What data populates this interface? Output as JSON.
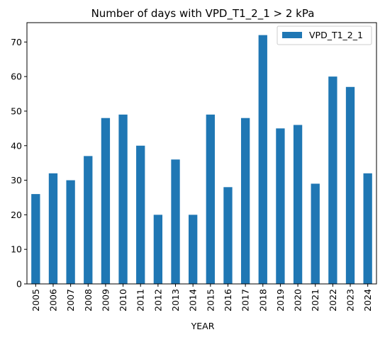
{
  "chart_data": {
    "type": "bar",
    "title": "Number of days with VPD_T1_2_1 > 2 kPa",
    "xlabel": "YEAR",
    "ylabel": "",
    "categories": [
      "2005",
      "2006",
      "2007",
      "2008",
      "2009",
      "2010",
      "2011",
      "2012",
      "2013",
      "2014",
      "2015",
      "2016",
      "2017",
      "2018",
      "2019",
      "2020",
      "2021",
      "2022",
      "2023",
      "2024"
    ],
    "series": [
      {
        "name": "VPD_T1_2_1",
        "values": [
          26,
          32,
          30,
          37,
          48,
          49,
          40,
          20,
          36,
          20,
          49,
          28,
          48,
          72,
          45,
          46,
          29,
          60,
          57,
          32
        ],
        "color": "#1f77b4"
      }
    ],
    "ylim": [
      0,
      75.6
    ],
    "yticks": [
      0,
      10,
      20,
      30,
      40,
      50,
      60,
      70
    ],
    "grid": false,
    "legend_position": "upper right"
  }
}
